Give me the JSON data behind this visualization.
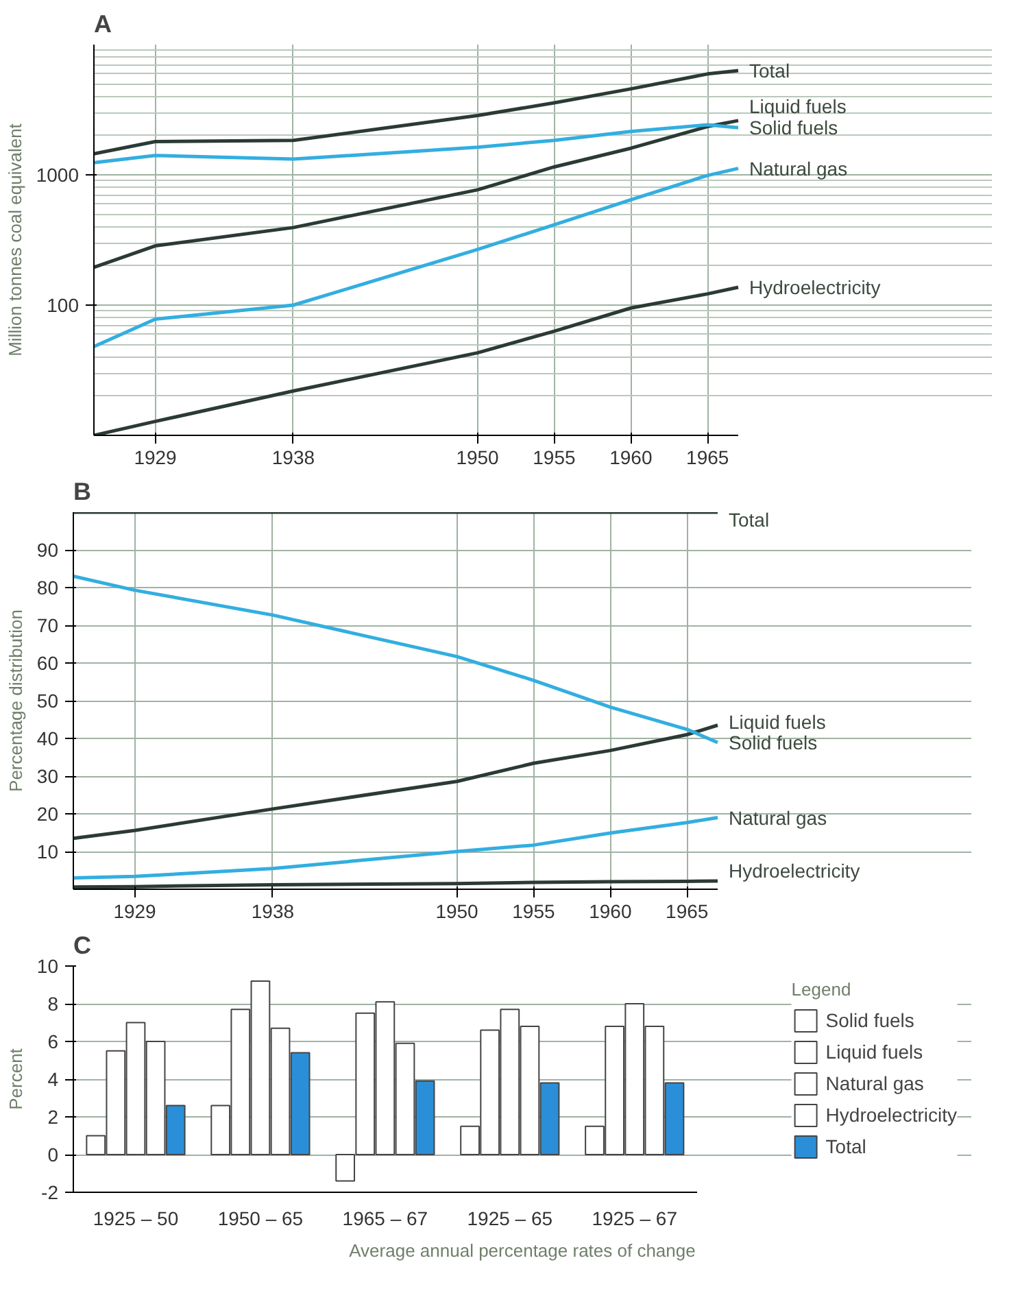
{
  "chart_data": [
    {
      "type": "line",
      "title": "A",
      "ylabel": "Million tonnes coal equivalent",
      "x": [
        1925,
        1929,
        1938,
        1950,
        1955,
        1960,
        1965,
        1967
      ],
      "xlim": [
        1925,
        1967
      ],
      "xticks": [
        1929,
        1938,
        1950,
        1955,
        1960,
        1965
      ],
      "ylim": [
        10,
        10000
      ],
      "yticks": [
        100,
        1000
      ],
      "log": true,
      "grid": true,
      "legend": false,
      "series": [
        {
          "name": "Total",
          "color": "#2b3a35",
          "values": [
            1450,
            1800,
            1840,
            2850,
            3570,
            4570,
            5950,
            6310
          ]
        },
        {
          "name": "Liquid fuels",
          "color": "#2b3a35",
          "values": [
            195,
            285,
            394,
            767,
            1150,
            1600,
            2350,
            2610
          ]
        },
        {
          "name": "Solid fuels",
          "color": "#33aee0",
          "values": [
            1240,
            1410,
            1320,
            1630,
            1840,
            2150,
            2420,
            2300
          ]
        },
        {
          "name": "Natural gas",
          "color": "#33aee0",
          "values": [
            48,
            78,
            100,
            267,
            414,
            644,
            990,
            1120
          ]
        },
        {
          "name": "Hydroelectricity",
          "color": "#2b3a35",
          "values": [
            10,
            12.8,
            21.9,
            43,
            63,
            95,
            122,
            137
          ]
        }
      ]
    },
    {
      "type": "line",
      "title": "B",
      "ylabel": "Percentage distribution",
      "x": [
        1925,
        1929,
        1938,
        1950,
        1955,
        1960,
        1965,
        1967
      ],
      "xlim": [
        1925,
        1967
      ],
      "xticks": [
        1929,
        1938,
        1950,
        1955,
        1960,
        1965
      ],
      "ylim": [
        0,
        100
      ],
      "yticks": [
        10,
        20,
        30,
        40,
        50,
        60,
        70,
        80,
        90
      ],
      "grid": true,
      "legend": false,
      "series": [
        {
          "name": "Total",
          "color": "#2b3a35",
          "values": [
            100,
            100,
            100,
            100,
            100,
            100,
            100,
            100
          ]
        },
        {
          "name": "Liquid fuels",
          "color": "#2b3a35",
          "values": [
            13.5,
            15.6,
            21.3,
            28.6,
            33.4,
            36.8,
            41,
            43.5
          ]
        },
        {
          "name": "Solid fuels",
          "color": "#33aee0",
          "values": [
            83,
            79.3,
            72.7,
            61.7,
            55.4,
            48.3,
            42.4,
            38.9
          ]
        },
        {
          "name": "Natural gas",
          "color": "#33aee0",
          "values": [
            3,
            3.4,
            5.5,
            10,
            11.7,
            14.9,
            17.7,
            19
          ]
        },
        {
          "name": "Hydroelectricity",
          "color": "#2b3a35",
          "values": [
            0.6,
            0.7,
            1.2,
            1.5,
            1.8,
            2,
            2.1,
            2.2
          ]
        }
      ]
    },
    {
      "type": "bar",
      "title": "C",
      "ylabel": "Percent",
      "xlabel": "Average annual percentage rates of change",
      "legend_title": "Legend",
      "categories": [
        "1925 – 50",
        "1950 – 65",
        "1965 – 67",
        "1925 – 65",
        "1925 – 67"
      ],
      "ylim": [
        -2,
        10
      ],
      "yticks": [
        -2,
        0,
        2,
        4,
        6,
        8,
        10
      ],
      "grid": "y",
      "legend": "right",
      "series": [
        {
          "name": "Solid fuels",
          "color": "#ffffff",
          "values": [
            1,
            2.6,
            -1.4,
            1.5,
            1.5
          ]
        },
        {
          "name": "Liquid fuels",
          "color": "#ffffff",
          "values": [
            5.5,
            7.7,
            7.5,
            6.6,
            6.8
          ]
        },
        {
          "name": "Natural gas",
          "color": "#ffffff",
          "values": [
            7,
            9.2,
            8.1,
            7.7,
            8
          ]
        },
        {
          "name": "Hydroelectricity",
          "color": "#ffffff",
          "values": [
            6,
            6.7,
            5.9,
            6.8,
            6.8
          ]
        },
        {
          "name": "Total",
          "color": "#2a8fd8",
          "values": [
            2.6,
            5.4,
            3.9,
            3.8,
            3.8
          ]
        }
      ]
    }
  ]
}
